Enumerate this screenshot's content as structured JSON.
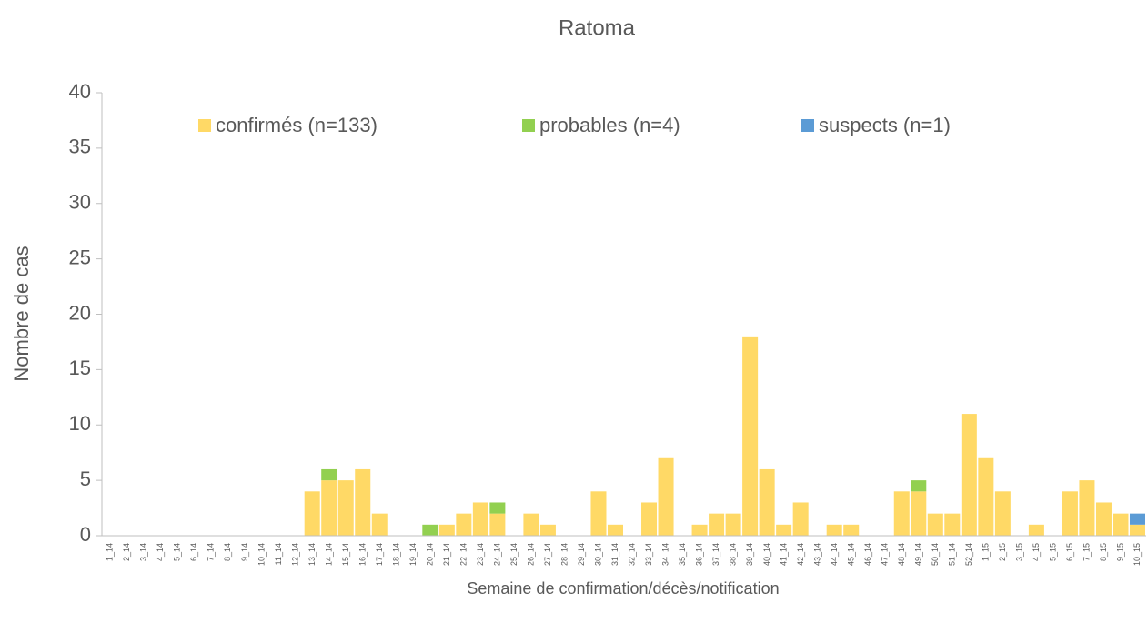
{
  "chart_data": {
    "type": "stacked_bar",
    "title": "Ratoma",
    "x_label": "Semaine de confirmation/décès/notification",
    "y_label": "Nombre de cas",
    "categories": [
      "1_14",
      "2_14",
      "3_14",
      "4_14",
      "5_14",
      "6_14",
      "7_14",
      "8_14",
      "9_14",
      "10_14",
      "11_14",
      "12_14",
      "13_14",
      "14_14",
      "15_14",
      "16_14",
      "17_14",
      "18_14",
      "19_14",
      "20_14",
      "21_14",
      "22_14",
      "23_14",
      "24_14",
      "25_14",
      "26_14",
      "27_14",
      "28_14",
      "29_14",
      "30_14",
      "31_14",
      "32_14",
      "33_14",
      "34_14",
      "35_14",
      "36_14",
      "37_14",
      "38_14",
      "39_14",
      "40_14",
      "41_14",
      "42_14",
      "43_14",
      "44_14",
      "45_14",
      "46_14",
      "47_14",
      "48_14",
      "49_14",
      "50_14",
      "51_14",
      "52_14",
      "1_15",
      "2_15",
      "3_15",
      "4_15",
      "5_15",
      "6_15",
      "7_15",
      "8_15",
      "9_15",
      "10_15"
    ],
    "series": [
      {
        "name": "confirmés (n=133)",
        "color": "#ffd966",
        "values": [
          0,
          0,
          0,
          0,
          0,
          0,
          0,
          0,
          0,
          0,
          0,
          0,
          4,
          5,
          5,
          6,
          2,
          0,
          0,
          0,
          1,
          2,
          3,
          2,
          0,
          2,
          1,
          0,
          0,
          4,
          1,
          0,
          3,
          7,
          0,
          1,
          2,
          2,
          18,
          6,
          1,
          3,
          0,
          1,
          1,
          0,
          0,
          4,
          4,
          2,
          2,
          11,
          7,
          4,
          0,
          1,
          0,
          4,
          5,
          3,
          2,
          1
        ]
      },
      {
        "name": "probables (n=4)",
        "color": "#92d050",
        "values": [
          0,
          0,
          0,
          0,
          0,
          0,
          0,
          0,
          0,
          0,
          0,
          0,
          0,
          1,
          0,
          0,
          0,
          0,
          0,
          1,
          0,
          0,
          0,
          1,
          0,
          0,
          0,
          0,
          0,
          0,
          0,
          0,
          0,
          0,
          0,
          0,
          0,
          0,
          0,
          0,
          0,
          0,
          0,
          0,
          0,
          0,
          0,
          0,
          1,
          0,
          0,
          0,
          0,
          0,
          0,
          0,
          0,
          0,
          0,
          0,
          0,
          0
        ]
      },
      {
        "name": "suspects (n=1)",
        "color": "#5b9bd5",
        "values": [
          0,
          0,
          0,
          0,
          0,
          0,
          0,
          0,
          0,
          0,
          0,
          0,
          0,
          0,
          0,
          0,
          0,
          0,
          0,
          0,
          0,
          0,
          0,
          0,
          0,
          0,
          0,
          0,
          0,
          0,
          0,
          0,
          0,
          0,
          0,
          0,
          0,
          0,
          0,
          0,
          0,
          0,
          0,
          0,
          0,
          0,
          0,
          0,
          0,
          0,
          0,
          0,
          0,
          0,
          0,
          0,
          0,
          0,
          0,
          0,
          0,
          1
        ]
      }
    ],
    "ylim": [
      0,
      40
    ],
    "yticks": [
      0,
      5,
      10,
      15,
      20,
      25,
      30,
      35,
      40
    ],
    "legend": "top"
  }
}
